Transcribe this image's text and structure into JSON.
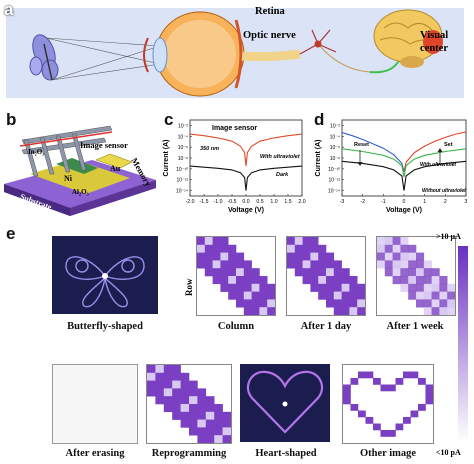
{
  "panels": {
    "a": {
      "letter": "a",
      "labels": {
        "retina": "Retina",
        "optic_nerve": "Optic nerve",
        "visual_center_1": "Visual",
        "visual_center_2": "center"
      },
      "colors": {
        "background": "#dbe4f7",
        "eye": "#f6a33a",
        "brain": "#f2c860",
        "butterfly": "#6b6ec4",
        "nerve_green": "#3cbf4a"
      }
    },
    "b": {
      "letter": "b",
      "labels": {
        "in2o3": "In₂O₃",
        "image_sensor": "Image sensor",
        "memory": "Memory",
        "au": "Au",
        "ni": "Ni",
        "al2o3": "Al₂O₃",
        "substrate": "Substrate"
      }
    },
    "c": {
      "letter": "c",
      "title": "Image sensor",
      "annotation_wavelength": "350 nm",
      "series_labels": {
        "uv": "With ultraviolet",
        "dark": "Dark"
      }
    },
    "d": {
      "letter": "d",
      "annotations": {
        "reset": "Reset",
        "set": "Set",
        "uv": "With ultraviolet",
        "no_uv": "Without ultraviolet"
      }
    },
    "e": {
      "letter": "e",
      "row_label": "Row",
      "scale_top": ">10 μA",
      "scale_bottom": "<10 pA",
      "captions": [
        "Butterfly-shaped",
        "Column",
        "After 1 day",
        "After 1 week",
        "After erasing",
        "Reprogramming",
        "Heart-shaped",
        "Other image"
      ],
      "colors": {
        "pixel": "#7a3fc2",
        "pixel_light": "#d9c8f2",
        "dark_bg": "#1b1d4f"
      }
    }
  },
  "chart_data": [
    {
      "type": "line",
      "panel": "c",
      "title": "Image sensor",
      "xlabel": "Voltage (V)",
      "ylabel": "Current (A)",
      "xlim": [
        -2.0,
        2.0
      ],
      "x_ticks": [
        "-2.0",
        "-1.5",
        "-1.0",
        "-0.5",
        "0.0",
        "0.5",
        "1.0",
        "1.5",
        "2.0"
      ],
      "y_ticks": [
        "10⁻²",
        "10⁻⁴",
        "10⁻⁶",
        "10⁻⁸",
        "10⁻¹⁰",
        "10⁻¹²",
        "10⁻¹⁴"
      ],
      "y_exponents": [
        -2,
        -4,
        -6,
        -8,
        -10,
        -12,
        -14
      ],
      "ylim_log10": [
        -15,
        -1
      ],
      "series": [
        {
          "name": "With ultraviolet",
          "color": "#e04a2a",
          "x": [
            -2.0,
            -1.5,
            -1.0,
            -0.5,
            -0.2,
            -0.05,
            0.0,
            0.05,
            0.2,
            0.5,
            1.0,
            1.5,
            2.0
          ],
          "log10_y": [
            -3.6,
            -3.9,
            -4.3,
            -4.9,
            -5.8,
            -7.0,
            -9.5,
            -7.0,
            -5.8,
            -4.9,
            -4.3,
            -3.9,
            -3.6
          ]
        },
        {
          "name": "Dark",
          "color": "#111111",
          "x": [
            -2.0,
            -1.5,
            -1.0,
            -0.5,
            -0.2,
            -0.05,
            0.0,
            0.05,
            0.2,
            0.5,
            1.0,
            1.5,
            2.0
          ],
          "log10_y": [
            -9.5,
            -9.7,
            -9.9,
            -10.2,
            -10.7,
            -11.6,
            -14.0,
            -11.6,
            -10.7,
            -10.2,
            -9.9,
            -9.7,
            -9.5
          ]
        }
      ]
    },
    {
      "type": "line",
      "panel": "d",
      "xlabel": "Voltage (V)",
      "ylabel": "Current (A)",
      "xlim": [
        -3,
        3
      ],
      "x_ticks": [
        "-3",
        "-2",
        "-1",
        "0",
        "1",
        "2",
        "3"
      ],
      "y_ticks": [
        "10⁻²",
        "10⁻⁴",
        "10⁻⁶",
        "10⁻⁸",
        "10⁻¹⁰",
        "10⁻¹²",
        "10⁻¹⁴"
      ],
      "y_exponents": [
        -2,
        -4,
        -6,
        -8,
        -10,
        -12,
        -14
      ],
      "ylim_log10": [
        -15,
        -1
      ],
      "series": [
        {
          "name": "Reset",
          "color": "#2f5fd0",
          "x": [
            -3,
            -2.5,
            -2,
            -1.5,
            -1,
            -0.5,
            -0.1,
            0
          ],
          "log10_y": [
            -3.3,
            -3.9,
            -4.6,
            -5.4,
            -6.2,
            -7.4,
            -9.0,
            -10.5
          ]
        },
        {
          "name": "Set",
          "color": "#e0452a",
          "x": [
            0,
            0.1,
            0.5,
            1,
            1.5,
            2,
            2.5,
            3
          ],
          "log10_y": [
            -10.5,
            -8.8,
            -7.0,
            -5.8,
            -4.9,
            -4.2,
            -3.6,
            -3.2
          ]
        },
        {
          "name": "With ultraviolet",
          "color": "#3bb14a",
          "x": [
            -3,
            -2,
            -1,
            -0.5,
            -0.1,
            0,
            0.1,
            0.5,
            1,
            2,
            3
          ],
          "log10_y": [
            -6.3,
            -6.8,
            -7.5,
            -8.2,
            -9.4,
            -11.5,
            -9.4,
            -8.2,
            -7.5,
            -6.8,
            -6.3
          ]
        },
        {
          "name": "Without ultraviolet",
          "color": "#111111",
          "x": [
            -3,
            -2,
            -1,
            -0.5,
            -0.1,
            0,
            0.1,
            0.5,
            1,
            2,
            3
          ],
          "log10_y": [
            -8.6,
            -9.0,
            -9.6,
            -10.2,
            -11.3,
            -14.0,
            -11.3,
            -10.2,
            -9.6,
            -9.0,
            -8.6
          ]
        }
      ]
    }
  ]
}
